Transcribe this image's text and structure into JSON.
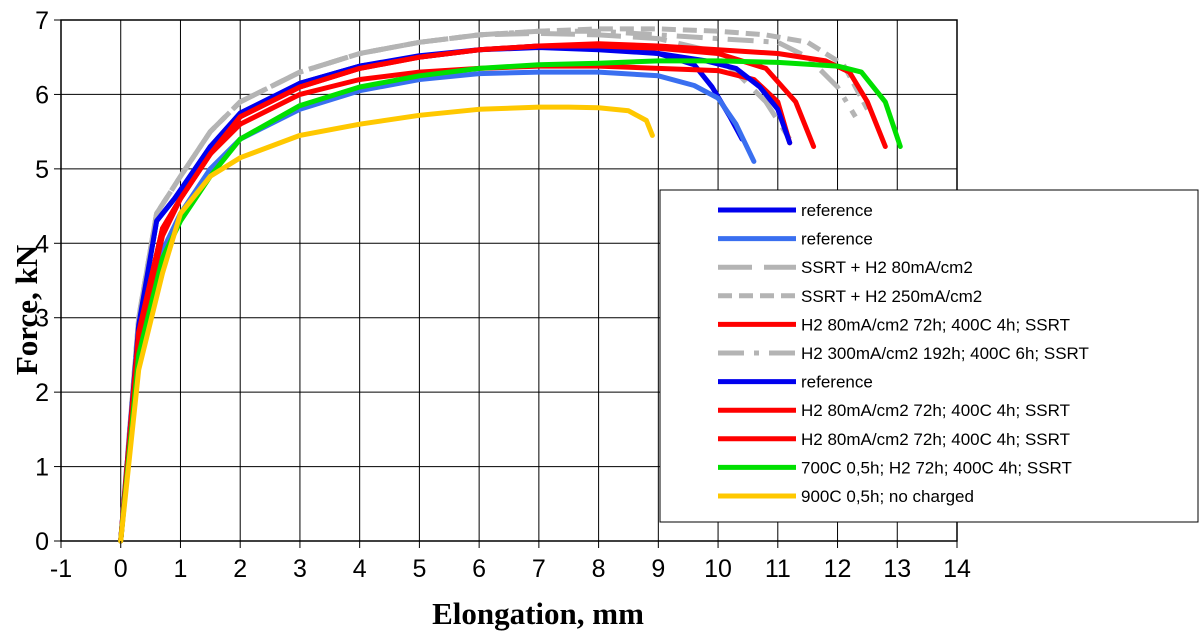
{
  "chart_data": {
    "type": "line",
    "title": "",
    "xlabel": "Elongation, mm",
    "ylabel": "Force, kN",
    "xlim": [
      -1,
      14
    ],
    "ylim": [
      0,
      7
    ],
    "xticks": [
      "-1",
      "0",
      "1",
      "2",
      "3",
      "4",
      "5",
      "6",
      "7",
      "8",
      "9",
      "10",
      "11",
      "12",
      "13",
      "14"
    ],
    "yticks": [
      "0",
      "1",
      "2",
      "3",
      "4",
      "5",
      "6",
      "7"
    ],
    "grid": true,
    "legend_position": "right",
    "series": [
      {
        "name": "reference",
        "color": "#0000ee",
        "dash": "solid",
        "x": [
          0,
          0.3,
          0.6,
          0.9,
          1.5,
          2,
          3,
          4,
          5,
          6,
          7,
          8,
          9,
          9.6,
          9.9,
          10.2,
          10.4
        ],
        "y": [
          0,
          2.9,
          4.3,
          4.6,
          5.3,
          5.7,
          6.15,
          6.38,
          6.5,
          6.6,
          6.65,
          6.65,
          6.55,
          6.4,
          6.1,
          5.7,
          5.4
        ]
      },
      {
        "name": "reference",
        "color": "#3a6ff0",
        "dash": "solid",
        "x": [
          0,
          0.3,
          0.7,
          1,
          1.5,
          2,
          3,
          4,
          5,
          6,
          7,
          8,
          9,
          9.6,
          10,
          10.3,
          10.6
        ],
        "y": [
          0,
          2.6,
          3.9,
          4.4,
          5.0,
          5.4,
          5.8,
          6.05,
          6.2,
          6.28,
          6.3,
          6.3,
          6.25,
          6.12,
          5.95,
          5.6,
          5.1
        ]
      },
      {
        "name": "SSRT + H2 80mA/cm2",
        "color": "#b4b4b4",
        "dash": "long",
        "x": [
          0,
          0.3,
          0.6,
          1,
          1.5,
          2,
          3,
          4,
          5,
          6,
          7,
          8,
          9,
          9.8,
          10.3,
          10.8,
          11.2
        ],
        "y": [
          0,
          3.0,
          4.4,
          4.9,
          5.5,
          5.9,
          6.3,
          6.55,
          6.7,
          6.8,
          6.82,
          6.8,
          6.75,
          6.6,
          6.3,
          5.9,
          5.4
        ]
      },
      {
        "name": "SSRT + H2 250mA/cm2",
        "color": "#b4b4b4",
        "dash": "short",
        "x": [
          0,
          0.3,
          0.6,
          1,
          1.5,
          2,
          3,
          4,
          5,
          6,
          7,
          8,
          9,
          10,
          10.8,
          11.5,
          12.1,
          12.5
        ],
        "y": [
          0,
          3.0,
          4.4,
          4.9,
          5.5,
          5.9,
          6.3,
          6.55,
          6.7,
          6.8,
          6.85,
          6.88,
          6.88,
          6.85,
          6.8,
          6.7,
          6.4,
          5.8
        ]
      },
      {
        "name": "H2 80mA/cm2 72h; 400C 4h; SSRT",
        "color": "#ff0000",
        "dash": "solid",
        "x": [
          0,
          0.3,
          0.7,
          1,
          1.5,
          2,
          3,
          4,
          5,
          6,
          7,
          8,
          9,
          10,
          10.6,
          11,
          11.2
        ],
        "y": [
          0,
          2.7,
          4.1,
          4.6,
          5.2,
          5.6,
          6.0,
          6.2,
          6.3,
          6.35,
          6.38,
          6.38,
          6.35,
          6.32,
          6.2,
          5.9,
          5.35
        ]
      },
      {
        "name": "H2 300mA/cm2 192h; 400C 6h; SSRT",
        "color": "#b4b4b4",
        "dash": "dashdot",
        "x": [
          0,
          0.3,
          0.6,
          1,
          1.5,
          2,
          3,
          4,
          5,
          6,
          7,
          8,
          9,
          10,
          11,
          11.5,
          12,
          12.3
        ],
        "y": [
          0,
          3.0,
          4.4,
          4.9,
          5.5,
          5.9,
          6.3,
          6.55,
          6.7,
          6.8,
          6.85,
          6.85,
          6.8,
          6.75,
          6.7,
          6.5,
          6.1,
          5.7
        ]
      },
      {
        "name": "reference",
        "color": "#0000ee",
        "dash": "solid",
        "x": [
          0,
          0.3,
          0.6,
          1,
          1.5,
          2,
          3,
          4,
          5,
          6,
          7,
          8,
          9,
          9.8,
          10.3,
          10.7,
          11.0,
          11.2
        ],
        "y": [
          0,
          2.9,
          4.3,
          4.7,
          5.3,
          5.75,
          6.15,
          6.38,
          6.52,
          6.6,
          6.63,
          6.6,
          6.55,
          6.45,
          6.35,
          6.1,
          5.8,
          5.35
        ]
      },
      {
        "name": "H2 80mA/cm2 72h; 400C 4h; SSRT",
        "color": "#ff0000",
        "dash": "solid",
        "x": [
          0,
          0.3,
          0.7,
          1,
          1.5,
          2,
          3,
          4,
          5,
          6,
          7,
          8,
          9,
          10,
          10.8,
          11.3,
          11.6
        ],
        "y": [
          0,
          2.8,
          4.2,
          4.6,
          5.2,
          5.7,
          6.1,
          6.35,
          6.5,
          6.6,
          6.65,
          6.65,
          6.62,
          6.55,
          6.35,
          5.9,
          5.3
        ]
      },
      {
        "name": "H2 80mA/cm2 72h; 400C 4h; SSRT",
        "color": "#ff0000",
        "dash": "solid",
        "x": [
          0,
          0.3,
          0.7,
          1,
          1.5,
          2,
          3,
          4,
          5,
          6,
          7,
          8,
          9,
          10,
          11,
          11.8,
          12.2,
          12.5,
          12.8
        ],
        "y": [
          0,
          2.8,
          4.2,
          4.6,
          5.2,
          5.7,
          6.1,
          6.35,
          6.5,
          6.6,
          6.65,
          6.68,
          6.65,
          6.6,
          6.55,
          6.45,
          6.3,
          5.9,
          5.3
        ]
      },
      {
        "name": "700C 0,5h; H2 72h; 400C 4h; SSRT",
        "color": "#00e000",
        "dash": "solid",
        "x": [
          0,
          0.3,
          0.7,
          1,
          1.5,
          2,
          3,
          4,
          5,
          6,
          7,
          8,
          9,
          10,
          11,
          12,
          12.4,
          12.8,
          13.05
        ],
        "y": [
          0,
          2.5,
          3.8,
          4.3,
          4.9,
          5.4,
          5.85,
          6.1,
          6.25,
          6.35,
          6.4,
          6.42,
          6.45,
          6.45,
          6.43,
          6.38,
          6.3,
          5.9,
          5.3
        ]
      },
      {
        "name": "900C 0,5h; no charged",
        "color": "#ffc800",
        "dash": "solid",
        "x": [
          0,
          0.3,
          0.7,
          1,
          1.5,
          2,
          3,
          4,
          5,
          6,
          7,
          7.5,
          8,
          8.5,
          8.8,
          8.9
        ],
        "y": [
          0,
          2.3,
          3.6,
          4.4,
          4.9,
          5.15,
          5.45,
          5.6,
          5.72,
          5.8,
          5.83,
          5.83,
          5.82,
          5.78,
          5.65,
          5.45
        ]
      }
    ]
  }
}
